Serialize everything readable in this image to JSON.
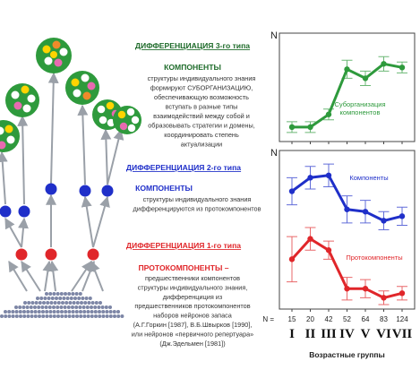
{
  "colors": {
    "green": "#2e9a3c",
    "green_dark": "#1e6b2a",
    "blue": "#1f2fc9",
    "red": "#e0262a",
    "arrow": "#9aa0a8",
    "base": "#7d86a6",
    "text_dark": "#222222",
    "text_gray": "#555555"
  },
  "blocks": {
    "level3": {
      "heading": "ДИФФЕРЕНЦИАЦИЯ 3-го типа",
      "sub": "КОМПОНЕНТЫ",
      "lines": [
        "структуры индивидуального знания",
        "формируют СУБОРГАНИЗАЦИЮ,",
        "обеспечивающую возможность",
        "вступать в разные типы",
        "взаимодействий между собой и",
        "образовывать стратегии и домены,",
        "координировать степень",
        "актуализации"
      ]
    },
    "level2": {
      "heading": "ДИФФЕРЕНЦИАЦИЯ  2-го типа",
      "sub": "КОМПОНЕНТЫ",
      "lines": [
        "структуры индивидуального знания",
        "дифференцируются из протокомпонентов"
      ]
    },
    "level1": {
      "heading": "ДИФФЕРЕНЦИАЦИЯ  1-го типа",
      "sub": "ПРОТОКОМПОНЕНТЫ –",
      "lines": [
        "предшественники компонентов",
        "структуры индивидуального знания,",
        "дифференциция из",
        "предшественников протокомпонентов",
        "наборов нейронов запаса",
        "(А.Г.Горкин [1987], В.Б.Швырков [1990],",
        "или нейронов «первичного репертуара»",
        "(Дж.Эдельмен [1981])"
      ]
    }
  },
  "chart_data": [
    {
      "type": "line",
      "ylabel": "N",
      "categories": [
        "I",
        "II",
        "III",
        "IV",
        "V",
        "VI",
        "VII"
      ],
      "series": [
        {
          "name": "Суборганизация компонентов",
          "color": "#2e9a3c",
          "values": [
            4.8,
            4.8,
            5.5,
            8.0,
            7.5,
            8.3,
            8.1
          ],
          "errors": [
            0.3,
            0.3,
            0.3,
            0.5,
            0.4,
            0.4,
            0.3
          ]
        }
      ],
      "ylim": [
        4,
        10
      ]
    },
    {
      "type": "line",
      "ylabel": "N",
      "xlabel": "Возрастные группы",
      "n_label": "N =",
      "n_values": [
        "15",
        "20",
        "42",
        "52",
        "64",
        "83",
        "124"
      ],
      "categories": [
        "I",
        "II",
        "III",
        "IV",
        "V",
        "VI",
        "VII"
      ],
      "series": [
        {
          "name": "Компоненты",
          "color": "#1f2fc9",
          "values": [
            15.2,
            15.8,
            15.9,
            14.4,
            14.3,
            13.9,
            14.1
          ],
          "errors": [
            0.6,
            0.5,
            0.5,
            0.6,
            0.5,
            0.4,
            0.4
          ]
        },
        {
          "name": "Протокомпоненты",
          "color": "#e0262a",
          "values": [
            12.2,
            13.1,
            12.6,
            10.9,
            10.9,
            10.5,
            10.7
          ],
          "errors": [
            1.0,
            0.5,
            0.4,
            0.5,
            0.4,
            0.3,
            0.3
          ]
        }
      ],
      "ylim": [
        10,
        17
      ]
    }
  ]
}
